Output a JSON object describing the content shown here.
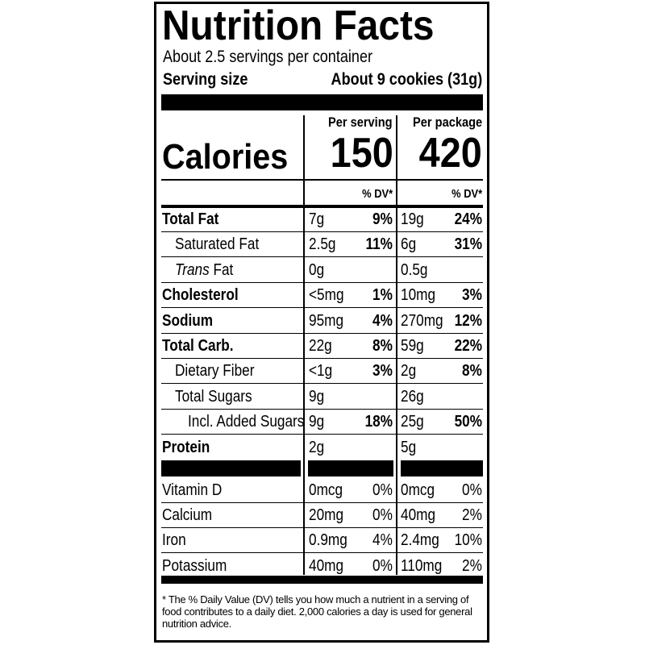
{
  "header": {
    "title": "Nutrition Facts",
    "servings": "About 2.5 servings per container",
    "serving_size_label": "Serving size",
    "serving_size_value": "About 9 cookies (31g)"
  },
  "calories": {
    "label": "Calories",
    "per_serving_heading": "Per serving",
    "per_package_heading": "Per package",
    "per_serving": "150",
    "per_package": "420"
  },
  "dv_heading": "% DV*",
  "rows": [
    {
      "name": "Total Fat",
      "level": 0,
      "serving_amount": "7g",
      "serving_dv": "9%",
      "package_amount": "19g",
      "package_dv": "24%"
    },
    {
      "name": "Saturated Fat",
      "level": 1,
      "serving_amount": "2.5g",
      "serving_dv": "11%",
      "package_amount": "6g",
      "package_dv": "31%"
    },
    {
      "italic_prefix": "Trans",
      "name": "Fat",
      "level": 1,
      "serving_amount": "0g",
      "package_amount": "0.5g"
    },
    {
      "name": "Cholesterol",
      "level": 0,
      "serving_amount": "<5mg",
      "serving_dv": "1%",
      "package_amount": "10mg",
      "package_dv": "3%"
    },
    {
      "name": "Sodium",
      "level": 0,
      "serving_amount": "95mg",
      "serving_dv": "4%",
      "package_amount": "270mg",
      "package_dv": "12%"
    },
    {
      "name": "Total Carb.",
      "level": 0,
      "serving_amount": "22g",
      "serving_dv": "8%",
      "package_amount": "59g",
      "package_dv": "22%"
    },
    {
      "name": "Dietary Fiber",
      "level": 1,
      "serving_amount": "<1g",
      "serving_dv": "3%",
      "package_amount": "2g",
      "package_dv": "8%"
    },
    {
      "name": "Total Sugars",
      "level": 1,
      "serving_amount": "9g",
      "package_amount": "26g"
    },
    {
      "name": "Incl. Added Sugars",
      "level": 2,
      "serving_amount": "9g",
      "serving_dv": "18%",
      "package_amount": "25g",
      "package_dv": "50%"
    },
    {
      "name": "Protein",
      "level": 0,
      "serving_amount": "2g",
      "package_amount": "5g"
    }
  ],
  "vitamins": [
    {
      "name": "Vitamin D",
      "serving_amount": "0mcg",
      "serving_dv": "0%",
      "package_amount": "0mcg",
      "package_dv": "0%"
    },
    {
      "name": "Calcium",
      "serving_amount": "20mg",
      "serving_dv": "0%",
      "package_amount": "40mg",
      "package_dv": "2%"
    },
    {
      "name": "Iron",
      "serving_amount": "0.9mg",
      "serving_dv": "4%",
      "package_amount": "2.4mg",
      "package_dv": "10%"
    },
    {
      "name": "Potassium",
      "serving_amount": "40mg",
      "serving_dv": "0%",
      "package_amount": "110mg",
      "package_dv": "2%"
    }
  ],
  "footnote": "* The % Daily Value (DV) tells you how much a nutrient in a serving of food contributes to a daily diet. 2,000 calories a day is used for general nutrition advice."
}
